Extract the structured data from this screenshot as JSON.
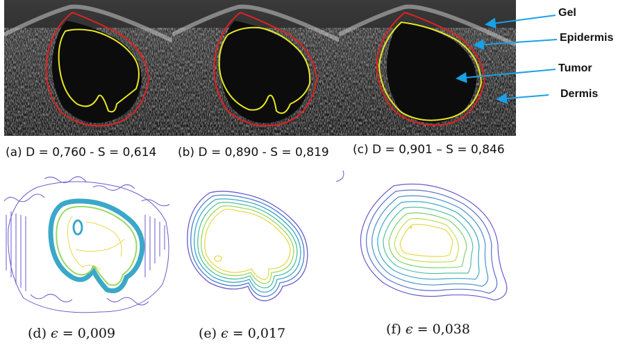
{
  "ultrasound_panels": [
    {
      "caption": "(a) D = 0,760 - S = 0,614"
    },
    {
      "caption": "(b) D = 0,890 - S = 0,819"
    },
    {
      "caption": "(c) D = 0,901 – S = 0,846"
    }
  ],
  "labels": [
    "Gel",
    "Epidermis",
    "Tumor",
    "Dermis"
  ],
  "contour_panels": [
    {
      "prefix": "(d) ",
      "value": "0,009"
    },
    {
      "prefix": "(e) ",
      "value": "0,017"
    },
    {
      "prefix": "(f) ",
      "value": "0,038"
    }
  ],
  "symbols": {
    "epsilon": "ϵ",
    "equals": " = "
  },
  "colors": {
    "outline_red": "#e02020",
    "outline_yellow": "#e8e820",
    "arrow_blue": "#1aa0e6",
    "contour_outer": "#6a5acd",
    "contour_mid": "#3aa8c8",
    "contour_inner": "#e8d84a"
  }
}
